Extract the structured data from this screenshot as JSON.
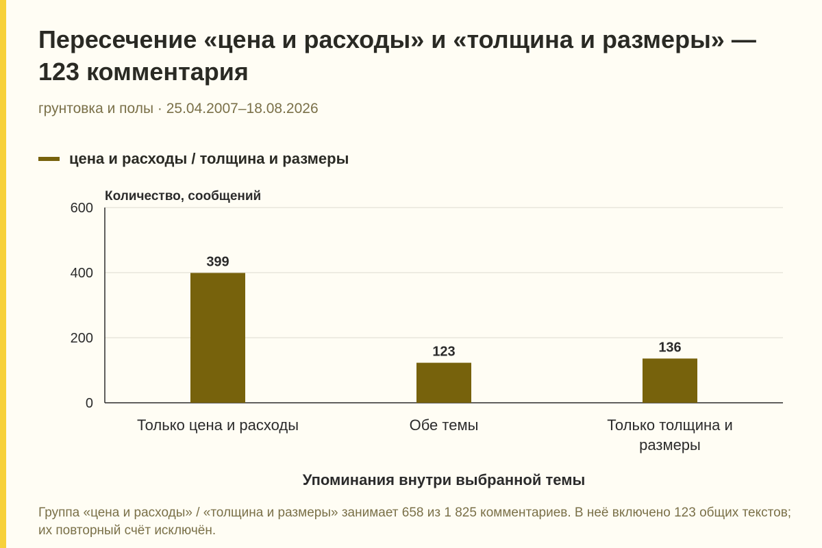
{
  "title": "Пересечение «цена и расходы» и «толщина и размеры» — 123 комментария",
  "subtitle": "грунтовка и полы · 25.04.2007–18.08.2026",
  "footnote": "Группа «цена и расходы» / «толщина и размеры» занимает 658 из 1 825 комментариев. В неё включено 123 общих текстов; их повторный счёт исключён.",
  "colors": {
    "bar": "#77620c",
    "accent": "#f7d13a",
    "grid": "#dedbd0",
    "axis": "#2b2b2b"
  },
  "chart_data": {
    "type": "bar",
    "categories": [
      "Только цена и расходы",
      "Обе темы",
      "Только толщина и размеры"
    ],
    "series": [
      {
        "name": "цена и расходы / толщина и размеры",
        "values": [
          399,
          123,
          136
        ]
      }
    ],
    "ylabel": "Количество, сообщений",
    "xlabel": "Упоминания внутри выбранной темы",
    "ylim": [
      0,
      600
    ],
    "yticks": [
      0,
      200,
      400,
      600
    ],
    "grid": true,
    "legend": "top-left",
    "data_labels": true
  }
}
